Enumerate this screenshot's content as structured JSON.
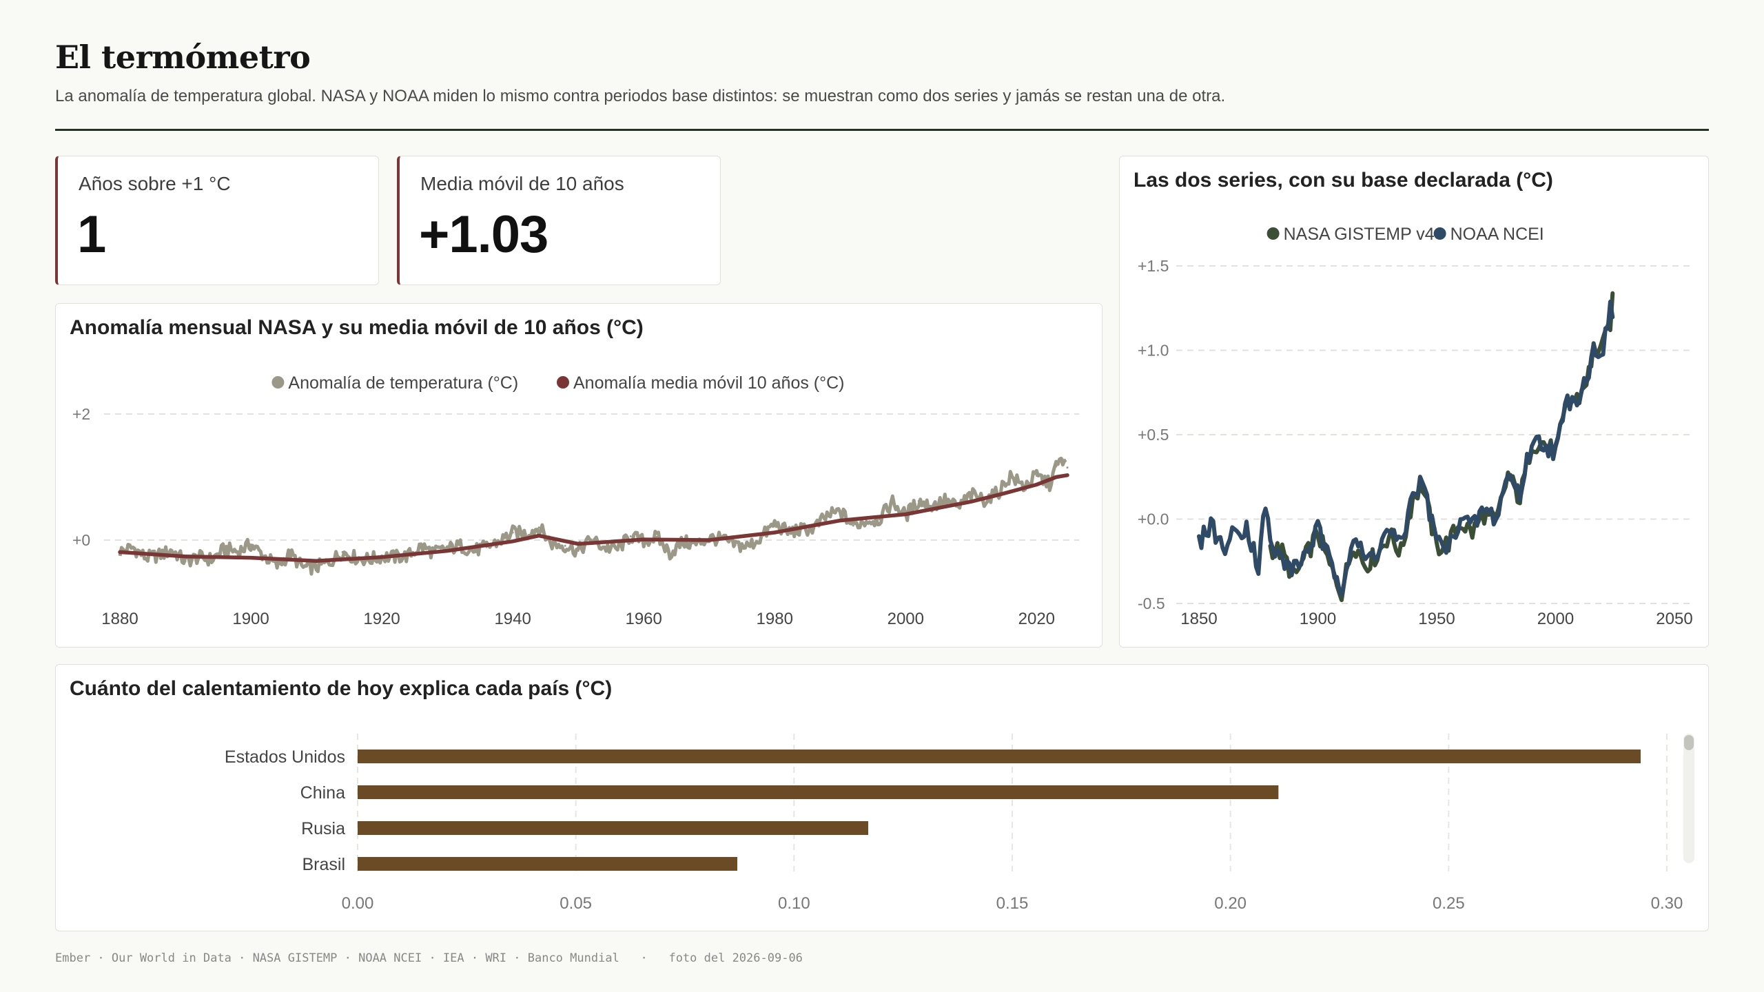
{
  "header": {
    "title": "El termómetro",
    "subtitle": "La anomalía de temperatura global. NASA y NOAA miden lo mismo contra periodos base distintos: se muestran como dos series y jamás se restan una de otra."
  },
  "kpis": [
    {
      "label": "Años sobre +1 °C",
      "value": "1"
    },
    {
      "label": "Media móvil de 10 años",
      "value": "+1.03"
    }
  ],
  "footer": {
    "sources": "Ember · Our World in Data · NASA GISTEMP · NOAA NCEI · IEA · WRI · Banco Mundial",
    "snapshot": "foto del 2026-09-06"
  },
  "colors": {
    "accent": "#7a3535",
    "nasa_raw": "#9b9888",
    "nasa_ma": "#7a3535",
    "gistemp": "#3b4f36",
    "ncei": "#2f4a66",
    "bars": "#6b4a26"
  },
  "chart_data": [
    {
      "id": "monthly",
      "type": "line",
      "title": "Anomalía mensual NASA y su media móvil de 10 años (°C)",
      "legend_position": "top-center",
      "grid": true,
      "xlim": [
        1880,
        2024.7
      ],
      "ylim": [
        -0.6,
        2.2
      ],
      "xticks": [
        1880,
        1900,
        1920,
        1940,
        1960,
        1980,
        2000,
        2020
      ],
      "yticks": [
        0,
        2
      ],
      "ytick_labels": [
        "+0",
        "+2"
      ],
      "series": [
        {
          "name": "Anomalía de temperatura (°C)",
          "x": [
            1880,
            1882,
            1884,
            1886,
            1888,
            1890,
            1892,
            1894,
            1896,
            1898,
            1900,
            1902,
            1904,
            1906,
            1908,
            1910,
            1912,
            1914,
            1916,
            1918,
            1920,
            1922,
            1924,
            1926,
            1928,
            1930,
            1932,
            1934,
            1936,
            1938,
            1940,
            1942,
            1944,
            1946,
            1948,
            1950,
            1952,
            1954,
            1956,
            1958,
            1960,
            1962,
            1964,
            1966,
            1968,
            1970,
            1972,
            1974,
            1976,
            1978,
            1980,
            1982,
            1984,
            1986,
            1988,
            1990,
            1992,
            1994,
            1996,
            1998,
            2000,
            2002,
            2004,
            2006,
            2008,
            2010,
            2012,
            2014,
            2016,
            2018,
            2020,
            2022,
            2023,
            2024,
            2024.7
          ],
          "y": [
            -0.18,
            -0.12,
            -0.28,
            -0.24,
            -0.16,
            -0.34,
            -0.27,
            -0.31,
            -0.14,
            -0.18,
            -0.07,
            -0.25,
            -0.41,
            -0.22,
            -0.44,
            -0.43,
            -0.35,
            -0.19,
            -0.28,
            -0.31,
            -0.26,
            -0.27,
            -0.25,
            -0.1,
            -0.2,
            -0.14,
            -0.09,
            -0.17,
            -0.11,
            -0.02,
            0.12,
            0.1,
            0.2,
            -0.06,
            -0.09,
            -0.17,
            0.01,
            -0.12,
            -0.14,
            0.06,
            -0.02,
            0.05,
            -0.21,
            -0.03,
            -0.07,
            0.03,
            0.01,
            -0.08,
            -0.1,
            0.05,
            0.26,
            0.13,
            0.16,
            0.19,
            0.38,
            0.45,
            0.23,
            0.31,
            0.33,
            0.61,
            0.39,
            0.62,
            0.54,
            0.63,
            0.52,
            0.72,
            0.64,
            0.74,
            1.02,
            0.85,
            1.02,
            0.89,
            1.17,
            1.28,
            1.15
          ]
        },
        {
          "name": "Anomalía media móvil 10 años (°C)",
          "x": [
            1880,
            1890,
            1900,
            1910,
            1920,
            1930,
            1940,
            1944,
            1950,
            1960,
            1970,
            1980,
            1990,
            2000,
            2010,
            2015,
            2020,
            2023,
            2024.7
          ],
          "y": [
            -0.19,
            -0.26,
            -0.28,
            -0.33,
            -0.27,
            -0.17,
            -0.02,
            0.07,
            -0.06,
            0.01,
            0.0,
            0.12,
            0.31,
            0.41,
            0.61,
            0.74,
            0.88,
            1.0,
            1.03
          ]
        }
      ]
    },
    {
      "id": "two_series",
      "type": "line",
      "title": "Las dos series, con su base declarada (°C)",
      "legend_position": "top-center",
      "grid": true,
      "xlim": [
        1850,
        2050
      ],
      "ylim": [
        -0.5,
        1.5
      ],
      "xticks": [
        1850,
        1900,
        1950,
        2000,
        2050
      ],
      "yticks": [
        -0.5,
        0.0,
        0.5,
        1.0,
        1.5
      ],
      "ytick_labels": [
        "-0.5",
        "+0.0",
        "+0.5",
        "+1.0",
        "+1.5"
      ],
      "series": [
        {
          "name": "NASA GISTEMP v4",
          "x": [
            1880,
            1885,
            1890,
            1895,
            1900,
            1905,
            1910,
            1915,
            1920,
            1925,
            1930,
            1935,
            1940,
            1944,
            1950,
            1955,
            1960,
            1965,
            1970,
            1975,
            1980,
            1985,
            1990,
            1995,
            2000,
            2005,
            2010,
            2015,
            2016,
            2020,
            2023,
            2024
          ],
          "y": [
            -0.17,
            -0.2,
            -0.35,
            -0.22,
            -0.08,
            -0.28,
            -0.43,
            -0.14,
            -0.27,
            -0.21,
            -0.09,
            -0.2,
            0.13,
            0.2,
            -0.17,
            -0.14,
            -0.02,
            -0.08,
            0.03,
            -0.02,
            0.26,
            0.12,
            0.45,
            0.45,
            0.39,
            0.68,
            0.72,
            0.9,
            1.01,
            1.02,
            1.17,
            1.28
          ]
        },
        {
          "name": "NOAA NCEI",
          "x": [
            1850,
            1855,
            1860,
            1865,
            1870,
            1875,
            1878,
            1880,
            1885,
            1890,
            1895,
            1900,
            1905,
            1910,
            1915,
            1920,
            1925,
            1930,
            1935,
            1940,
            1944,
            1950,
            1955,
            1960,
            1965,
            1970,
            1975,
            1980,
            1985,
            1990,
            1995,
            2000,
            2005,
            2010,
            2015,
            2016,
            2020,
            2023,
            2024
          ],
          "y": [
            -0.15,
            -0.02,
            -0.18,
            -0.08,
            -0.04,
            -0.28,
            0.1,
            -0.16,
            -0.24,
            -0.3,
            -0.2,
            -0.06,
            -0.26,
            -0.39,
            -0.1,
            -0.25,
            -0.18,
            -0.06,
            -0.17,
            0.16,
            0.22,
            -0.13,
            -0.18,
            0.02,
            -0.05,
            0.06,
            0.0,
            0.27,
            0.15,
            0.46,
            0.45,
            0.4,
            0.7,
            0.74,
            0.92,
            1.01,
            1.01,
            1.23,
            1.18
          ]
        }
      ]
    },
    {
      "id": "countries",
      "type": "bar",
      "orientation": "horizontal",
      "title": "Cuánto del calentamiento de hoy explica cada país (°C)",
      "grid": true,
      "xlim": [
        0,
        0.31
      ],
      "xticks": [
        0.0,
        0.05,
        0.1,
        0.15,
        0.2,
        0.25,
        0.3
      ],
      "xtick_labels": [
        "0.00",
        "0.05",
        "0.10",
        "0.15",
        "0.20",
        "0.25",
        "0.30"
      ],
      "categories": [
        "Estados Unidos",
        "China",
        "Rusia",
        "Brasil"
      ],
      "values": [
        0.294,
        0.211,
        0.117,
        0.087
      ]
    }
  ]
}
